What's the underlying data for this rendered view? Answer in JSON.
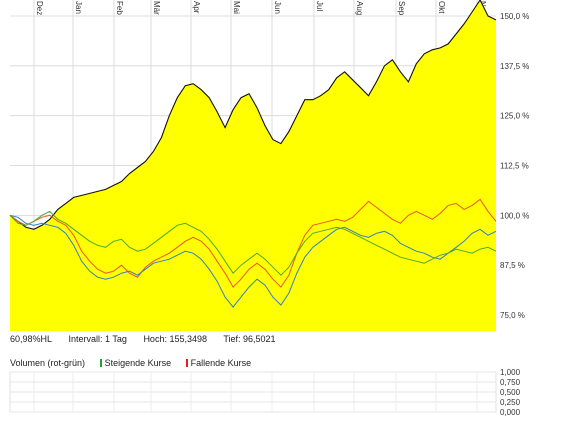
{
  "chart_data": [
    {
      "type": "area",
      "x_tick_labels": [
        "Dez",
        "Jan",
        "Feb",
        "Mär",
        "Apr",
        "Mai",
        "Jun",
        "Jul",
        "Aug",
        "Sep",
        "Okt",
        "Nov"
      ],
      "y_tick_labels": [
        "150,0 %",
        "137,5 %",
        "125,0 %",
        "112,5 %",
        "100,0 %",
        "87,5 %",
        "75,0 %"
      ],
      "y_ticks": [
        150,
        137.5,
        125,
        112.5,
        100,
        87.5,
        75
      ],
      "ylim": [
        71,
        154
      ],
      "grid": true,
      "fill_color": "#ffff00",
      "series": [
        {
          "color": "#111111",
          "fill": true,
          "values": [
            100,
            98.5,
            97.0,
            96.5,
            97.5,
            99.0,
            101.5,
            103.0,
            104.5,
            105.0,
            105.5,
            106.0,
            106.5,
            107.5,
            108.5,
            110.5,
            112.0,
            113.5,
            116.0,
            119.5,
            125.0,
            129.5,
            132.5,
            133.0,
            131.5,
            129.5,
            126.0,
            122.0,
            126.5,
            129.5,
            130.5,
            127.0,
            122.5,
            119.0,
            118.0,
            121.0,
            125.0,
            129.0,
            129.0,
            130.0,
            131.5,
            134.5,
            136.0,
            134.0,
            132.0,
            130.0,
            133.5,
            137.5,
            139.0,
            136.0,
            133.5,
            138.0,
            140.5,
            141.5,
            142.0,
            143.0,
            145.5,
            148.0,
            151.0,
            154.0,
            150.0,
            149.0
          ]
        },
        {
          "color": "#e8552d",
          "fill": false,
          "values": [
            100,
            98.5,
            97.5,
            98.5,
            99.5,
            100.0,
            98.5,
            97.5,
            95.0,
            91.0,
            88.5,
            86.5,
            85.5,
            86.0,
            87.5,
            85.5,
            84.5,
            87.0,
            88.5,
            89.5,
            90.5,
            92.0,
            93.5,
            94.5,
            93.5,
            91.5,
            88.5,
            85.5,
            82.0,
            84.0,
            86.5,
            88.0,
            86.5,
            84.0,
            82.0,
            85.0,
            90.5,
            95.0,
            97.5,
            98.0,
            98.5,
            99.0,
            98.5,
            99.5,
            101.5,
            103.5,
            102.0,
            100.5,
            99.0,
            98.0,
            100.0,
            101.0,
            100.0,
            99.0,
            100.5,
            102.5,
            103.0,
            101.5,
            102.5,
            104.0,
            101.0,
            98.5
          ]
        },
        {
          "color": "#2f7fc1",
          "fill": false,
          "values": [
            100,
            99.5,
            98.0,
            97.5,
            98.0,
            97.5,
            97.0,
            95.5,
            92.5,
            88.5,
            86.0,
            84.5,
            84.0,
            84.5,
            85.5,
            86.0,
            85.0,
            86.5,
            88.0,
            88.5,
            89.0,
            90.0,
            91.0,
            90.5,
            89.0,
            86.5,
            83.5,
            79.5,
            77.0,
            79.5,
            82.0,
            84.0,
            82.5,
            79.5,
            77.5,
            80.5,
            85.5,
            89.5,
            92.0,
            93.5,
            95.0,
            96.5,
            97.0,
            96.0,
            95.0,
            94.5,
            95.5,
            96.0,
            95.0,
            93.0,
            92.0,
            91.0,
            90.5,
            89.5,
            89.0,
            90.5,
            92.0,
            93.5,
            95.5,
            96.5,
            95.0,
            96.0
          ]
        },
        {
          "color": "#4ea72e",
          "fill": false,
          "values": [
            100,
            98.0,
            97.5,
            98.5,
            100.0,
            101.0,
            99.0,
            98.0,
            96.5,
            95.0,
            93.5,
            92.5,
            92.0,
            93.5,
            94.0,
            92.0,
            91.0,
            91.5,
            93.0,
            94.5,
            96.0,
            97.5,
            98.0,
            97.0,
            96.0,
            94.0,
            91.5,
            88.5,
            85.5,
            87.5,
            89.0,
            90.5,
            89.0,
            87.0,
            85.0,
            87.0,
            90.5,
            93.5,
            95.5,
            96.0,
            96.5,
            97.0,
            96.5,
            95.5,
            94.5,
            93.5,
            92.5,
            91.5,
            90.5,
            89.5,
            89.0,
            88.5,
            88.0,
            89.0,
            90.0,
            90.5,
            91.5,
            91.0,
            90.5,
            91.5,
            92.0,
            91.0
          ]
        }
      ]
    },
    {
      "type": "bar",
      "title": "Volumen (rot-grün)",
      "legend": [
        {
          "label": "Steigende Kurse",
          "color": "#27a527"
        },
        {
          "label": "Fallende Kurse",
          "color": "#e02020"
        }
      ],
      "y_tick_labels": [
        "1,000",
        "0,750",
        "0,500",
        "0,250",
        "0,000"
      ],
      "y_ticks": [
        1.0,
        0.75,
        0.5,
        0.25,
        0.0
      ],
      "ylim": [
        0,
        1
      ],
      "values": []
    }
  ],
  "info": {
    "perf": "60,98%HL",
    "interval": "Intervall: 1 Tag",
    "high": "Hoch: 155,3498",
    "low": "Tief: 96,5021"
  },
  "volume": {
    "title": "Volumen (rot-grün)",
    "rising": "Steigende Kurse",
    "falling": "Fallende Kurse"
  }
}
